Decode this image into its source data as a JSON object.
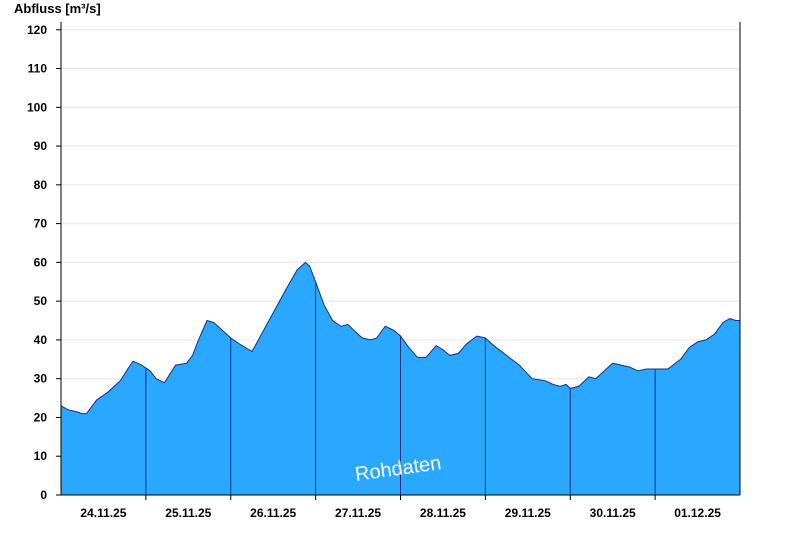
{
  "chart_data": {
    "type": "area",
    "ylabel": "Abfluss [m³/s]",
    "watermark": "Rohdaten",
    "ylim": [
      0,
      122
    ],
    "yticks": [
      0,
      10,
      20,
      30,
      40,
      50,
      60,
      70,
      80,
      90,
      100,
      110,
      120
    ],
    "day_labels": [
      "24.11.25",
      "25.11.25",
      "26.11.25",
      "27.11.25",
      "28.11.25",
      "29.11.25",
      "30.11.25",
      "01.12.25"
    ],
    "grid": true,
    "colors": {
      "fill": "#2aa8ff",
      "line": "#1a2f7a",
      "grid": "#e6e6e6"
    },
    "series": [
      {
        "values": [
          [
            0.0,
            23.0
          ],
          [
            0.08,
            22.0
          ],
          [
            0.18,
            21.5
          ],
          [
            0.25,
            21.0
          ],
          [
            0.3,
            21.0
          ],
          [
            0.42,
            24.5
          ],
          [
            0.55,
            26.5
          ],
          [
            0.7,
            29.5
          ],
          [
            0.8,
            33.0
          ],
          [
            0.85,
            34.5
          ],
          [
            0.95,
            33.5
          ],
          [
            1.05,
            32.0
          ],
          [
            1.12,
            30.0
          ],
          [
            1.22,
            29.0
          ],
          [
            1.35,
            33.5
          ],
          [
            1.48,
            34.0
          ],
          [
            1.55,
            36.0
          ],
          [
            1.62,
            40.0
          ],
          [
            1.72,
            45.0
          ],
          [
            1.8,
            44.5
          ],
          [
            1.9,
            42.5
          ],
          [
            2.0,
            40.5
          ],
          [
            2.1,
            39.0
          ],
          [
            2.25,
            37.0
          ],
          [
            2.35,
            41.0
          ],
          [
            2.5,
            47.0
          ],
          [
            2.65,
            53.0
          ],
          [
            2.78,
            58.0
          ],
          [
            2.88,
            60.0
          ],
          [
            2.93,
            59.0
          ],
          [
            3.0,
            55.0
          ],
          [
            3.1,
            49.0
          ],
          [
            3.2,
            45.0
          ],
          [
            3.3,
            43.5
          ],
          [
            3.38,
            44.0
          ],
          [
            3.45,
            42.5
          ],
          [
            3.55,
            40.5
          ],
          [
            3.65,
            40.0
          ],
          [
            3.72,
            40.5
          ],
          [
            3.82,
            43.5
          ],
          [
            3.92,
            42.5
          ],
          [
            4.0,
            41.0
          ],
          [
            4.1,
            38.0
          ],
          [
            4.2,
            35.5
          ],
          [
            4.3,
            35.5
          ],
          [
            4.42,
            38.5
          ],
          [
            4.5,
            37.5
          ],
          [
            4.58,
            36.0
          ],
          [
            4.68,
            36.5
          ],
          [
            4.78,
            39.0
          ],
          [
            4.9,
            41.0
          ],
          [
            5.0,
            40.5
          ],
          [
            5.1,
            38.5
          ],
          [
            5.25,
            36.0
          ],
          [
            5.4,
            33.5
          ],
          [
            5.55,
            30.0
          ],
          [
            5.7,
            29.5
          ],
          [
            5.8,
            28.5
          ],
          [
            5.88,
            28.0
          ],
          [
            5.95,
            28.5
          ],
          [
            6.0,
            27.5
          ],
          [
            6.1,
            28.0
          ],
          [
            6.22,
            30.5
          ],
          [
            6.3,
            30.0
          ],
          [
            6.4,
            32.0
          ],
          [
            6.5,
            34.0
          ],
          [
            6.6,
            33.5
          ],
          [
            6.7,
            33.0
          ],
          [
            6.8,
            32.0
          ],
          [
            6.9,
            32.5
          ],
          [
            7.0,
            32.5
          ],
          [
            7.15,
            32.5
          ],
          [
            7.3,
            35.0
          ],
          [
            7.4,
            38.0
          ],
          [
            7.5,
            39.5
          ],
          [
            7.6,
            40.0
          ],
          [
            7.7,
            41.5
          ],
          [
            7.8,
            44.5
          ],
          [
            7.88,
            45.5
          ],
          [
            7.95,
            45.0
          ],
          [
            8.0,
            45.0
          ]
        ]
      }
    ]
  }
}
